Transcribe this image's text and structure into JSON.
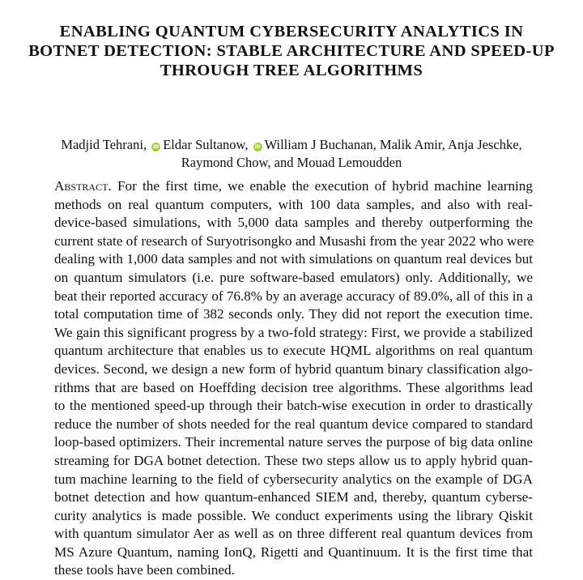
{
  "title_lines": [
    "ENABLING QUANTUM CYBERSECURITY ANALYTICS IN",
    "BOTNET DETECTION: STABLE ARCHITECTURE AND SPEED-UP",
    "THROUGH TREE ALGORITHMS"
  ],
  "authors": {
    "a1": "Madjid Tehrani,",
    "a2": "Eldar Sultanow,",
    "a3": "William J Buchanan, Malik Amir, Anja Jeschke,",
    "line2": "Raymond Chow, and Mouad Lemoudden",
    "orcid_label": "iD",
    "orcid_color": "#a6ce39"
  },
  "abstract": {
    "heading": "Abstract.",
    "lines": [
      "For the first time, we enable the execution of hybrid machine learning",
      "methods on real quantum computers, with 100 data samples, and also with real-",
      "device-based simulations, with 5,000 data samples and thereby outperforming the",
      "current state of research of Suryotrisongko and Musashi from the year 2022 who were",
      "dealing with 1,000 data samples and not with simulations on quantum real devices but",
      "on quantum simulators (i.e.  pure software-based emulators) only.  Additionally, we",
      "beat their reported accuracy of 76.8% by an average accuracy of 89.0%, all of this in a",
      "total computation time of 382 seconds only.  They did not report the execution time.",
      "We gain this significant progress by a two-fold strategy: First, we provide a stabilized",
      "quantum architecture that enables us to execute HQML algorithms on real quantum",
      "devices.  Second, we design a new form of hybrid quantum binary classification algo-",
      "rithms that are based on Hoeffding decision tree algorithms.  These algorithms lead",
      "to the mentioned speed-up through their batch-wise execution in order to drastically",
      "reduce the number of shots needed for the real quantum device compared to standard",
      "loop-based optimizers.  Their incremental nature serves the purpose of big data online",
      "streaming for DGA botnet detection.  These two steps allow us to apply hybrid quan-",
      "tum machine learning to the field of cybersecurity analytics on the example of DGA",
      "botnet detection and how quantum-enhanced SIEM and, thereby, quantum cyberse-",
      "curity analytics is made possible.  We conduct experiments using the library Qiskit",
      "with quantum simulator Aer as well as on three different real quantum devices from",
      "MS Azure Quantum, naming IonQ, Rigetti and Quantinuum.  It is the first time that",
      "these tools have been combined."
    ]
  }
}
